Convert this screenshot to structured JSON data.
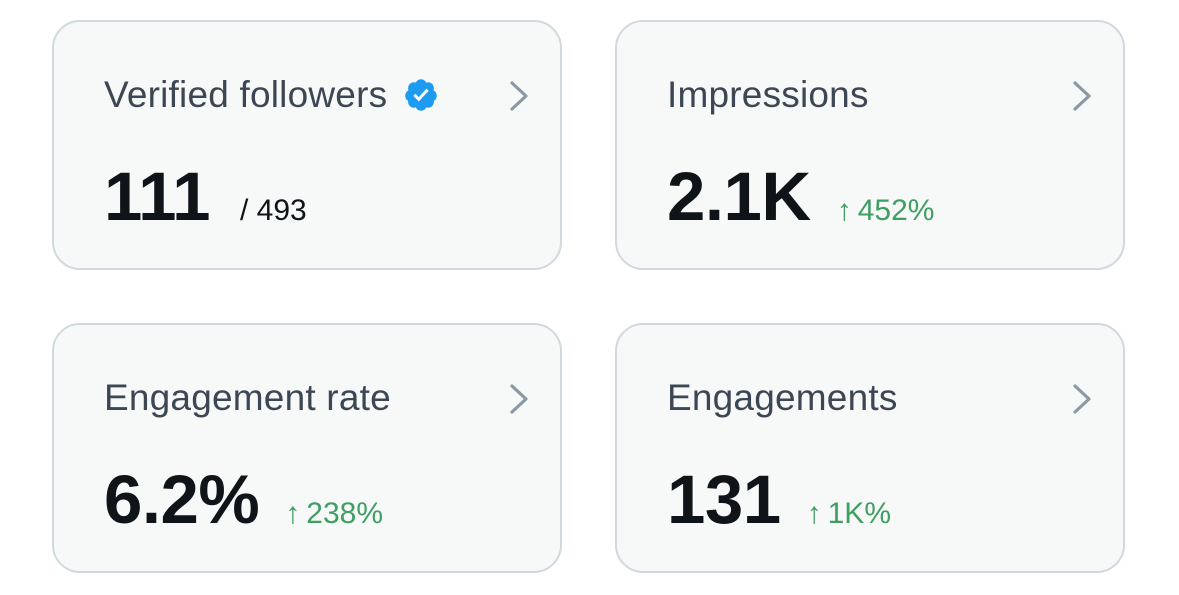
{
  "cards": [
    {
      "title": "Verified followers",
      "value": "111",
      "sub": "/ 493",
      "icon": "verified-badge-icon",
      "badge_color": "#1d9bf0"
    },
    {
      "title": "Impressions",
      "value": "2.1K",
      "delta_arrow": "↑",
      "delta": "452%"
    },
    {
      "title": "Engagement rate",
      "value": "6.2%",
      "delta_arrow": "↑",
      "delta": "238%"
    },
    {
      "title": "Engagements",
      "value": "131",
      "delta_arrow": "↑",
      "delta": "1K%"
    }
  ],
  "colors": {
    "card_bg": "#f7f9f9",
    "card_border": "#cfd9de",
    "title_text": "#3c4753",
    "value_text": "#0f1419",
    "positive_delta": "#3f9e62",
    "chevron": "#8b98a5"
  }
}
